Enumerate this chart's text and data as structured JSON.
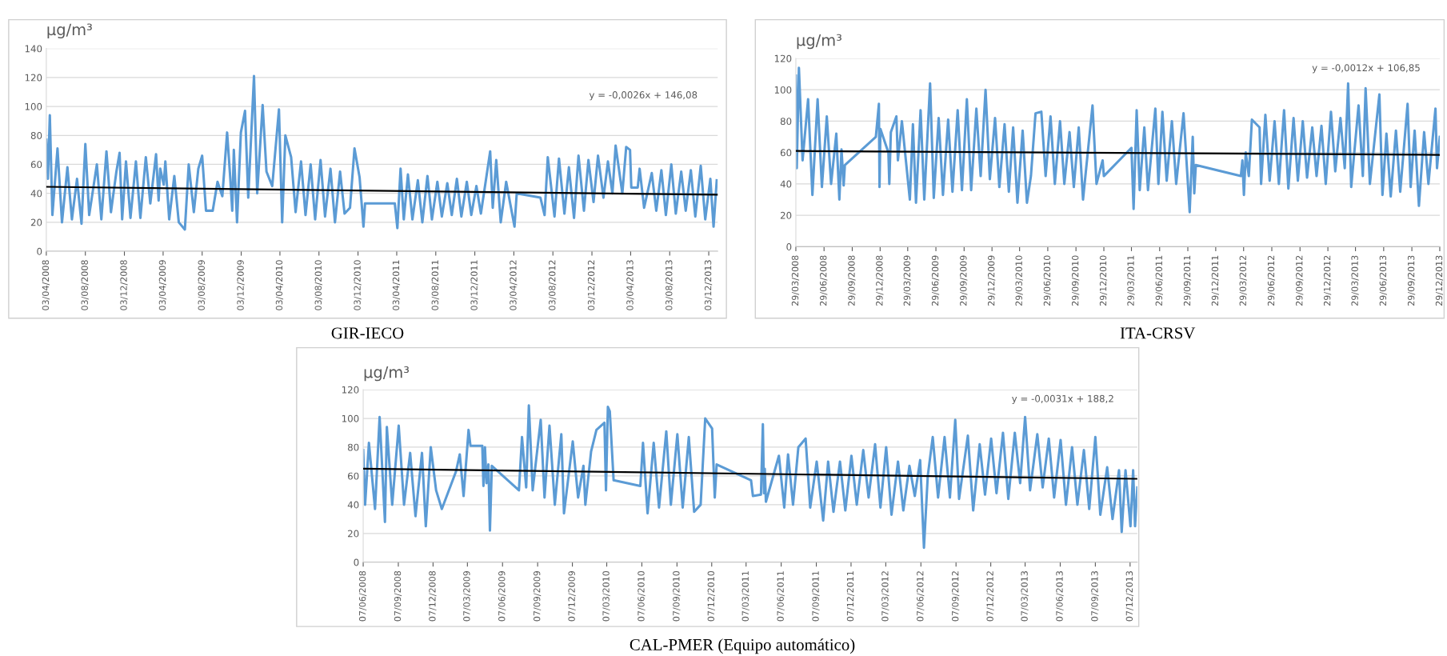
{
  "chart_data": [
    {
      "type": "line",
      "title": "GIR-IECO",
      "ylabel": "μg/m³",
      "annotations": [
        "y = -0,0026x + 146,08"
      ],
      "grid": "y",
      "xlim": [
        "2008-04-03",
        "2013-12-31"
      ],
      "ylim": [
        0,
        140
      ],
      "yticks": [
        0,
        20,
        40,
        60,
        80,
        100,
        120,
        140
      ],
      "xticks": [
        {
          "value": "2008-04-03",
          "label": "03/04/2008"
        },
        {
          "value": "2008-08-03",
          "label": "03/08/2008"
        },
        {
          "value": "2008-12-03",
          "label": "03/12/2008"
        },
        {
          "value": "2009-04-03",
          "label": "03/04/2009"
        },
        {
          "value": "2009-08-03",
          "label": "03/08/2009"
        },
        {
          "value": "2009-12-03",
          "label": "03/12/2009"
        },
        {
          "value": "2010-04-03",
          "label": "03/04/2010"
        },
        {
          "value": "2010-08-03",
          "label": "03/08/2010"
        },
        {
          "value": "2010-12-03",
          "label": "03/12/2010"
        },
        {
          "value": "2011-04-03",
          "label": "03/04/2011"
        },
        {
          "value": "2011-08-03",
          "label": "03/08/2011"
        },
        {
          "value": "2011-12-03",
          "label": "03/12/2011"
        },
        {
          "value": "2012-04-03",
          "label": "03/04/2012"
        },
        {
          "value": "2012-08-03",
          "label": "03/08/2012"
        },
        {
          "value": "2012-12-03",
          "label": "03/12/2012"
        },
        {
          "value": "2013-04-03",
          "label": "03/04/2013"
        },
        {
          "value": "2013-08-03",
          "label": "03/08/2013"
        },
        {
          "value": "2013-12-03",
          "label": "03/12/2013"
        }
      ],
      "series": [
        {
          "color": "#5b9bd5",
          "x": [
            "2008-04-03",
            "2008-04-08",
            "2008-04-14",
            "2008-04-22",
            "2008-05-08",
            "2008-05-22",
            "2008-06-08",
            "2008-06-22",
            "2008-07-08",
            "2008-07-22",
            "2008-08-03",
            "2008-08-15",
            "2008-09-08",
            "2008-09-22",
            "2008-10-08",
            "2008-10-22",
            "2008-11-08",
            "2008-11-18",
            "2008-11-26",
            "2008-12-08",
            "2008-12-22",
            "2009-01-08",
            "2009-01-22",
            "2009-02-08",
            "2009-02-22",
            "2009-03-12",
            "2009-03-20",
            "2009-03-25",
            "2009-04-05",
            "2009-04-10",
            "2009-04-22",
            "2009-05-08",
            "2009-05-22",
            "2009-06-10",
            "2009-06-22",
            "2009-07-08",
            "2009-07-22",
            "2009-08-03",
            "2009-08-15",
            "2009-09-05",
            "2009-09-20",
            "2009-10-05",
            "2009-10-20",
            "2009-10-30",
            "2009-11-05",
            "2009-11-10",
            "2009-11-20",
            "2009-12-02",
            "2009-12-15",
            "2009-12-25",
            "2010-01-12",
            "2010-01-22",
            "2010-02-08",
            "2010-02-20",
            "2010-03-10",
            "2010-03-31",
            "2010-04-10",
            "2010-04-20",
            "2010-05-08",
            "2010-05-22",
            "2010-06-08",
            "2010-06-22",
            "2010-07-08",
            "2010-07-22",
            "2010-08-08",
            "2010-08-22",
            "2010-09-08",
            "2010-09-22",
            "2010-10-08",
            "2010-10-22",
            "2010-11-08",
            "2010-11-22",
            "2010-12-08",
            "2010-12-20",
            "2010-12-25",
            "2011-03-28",
            "2011-04-05",
            "2011-04-15",
            "2011-04-25",
            "2011-05-08",
            "2011-05-22",
            "2011-06-08",
            "2011-06-22",
            "2011-07-08",
            "2011-07-22",
            "2011-08-08",
            "2011-08-22",
            "2011-09-08",
            "2011-09-22",
            "2011-10-08",
            "2011-10-22",
            "2011-11-08",
            "2011-11-22",
            "2011-12-08",
            "2011-12-22",
            "2012-01-20",
            "2012-01-28",
            "2012-02-08",
            "2012-02-22",
            "2012-03-10",
            "2012-04-05",
            "2012-04-12",
            "2012-06-25",
            "2012-07-08",
            "2012-07-18",
            "2012-08-08",
            "2012-08-22",
            "2012-09-08",
            "2012-09-22",
            "2012-10-08",
            "2012-10-22",
            "2012-11-08",
            "2012-11-22",
            "2012-12-08",
            "2012-12-22",
            "2013-01-08",
            "2013-01-22",
            "2013-02-05",
            "2013-02-15",
            "2013-03-08",
            "2013-03-20",
            "2013-04-01",
            "2013-04-05",
            "2013-04-25",
            "2013-05-01",
            "2013-05-15",
            "2013-06-08",
            "2013-06-22",
            "2013-07-08",
            "2013-07-22",
            "2013-08-08",
            "2013-08-22",
            "2013-09-08",
            "2013-09-22",
            "2013-10-08",
            "2013-10-22",
            "2013-11-08",
            "2013-11-22",
            "2013-12-08",
            "2013-12-18",
            "2013-12-28"
          ],
          "values": [
            77,
            50,
            94,
            25,
            71,
            20,
            58,
            22,
            50,
            19,
            74,
            25,
            60,
            22,
            69,
            27,
            55,
            68,
            22,
            62,
            23,
            62,
            23,
            65,
            33,
            67,
            35,
            57,
            46,
            62,
            22,
            52,
            20,
            15,
            60,
            27,
            57,
            66,
            28,
            28,
            48,
            38,
            82,
            50,
            28,
            70,
            20,
            82,
            97,
            37,
            121,
            40,
            101,
            55,
            45,
            98,
            20,
            80,
            65,
            27,
            62,
            25,
            60,
            22,
            63,
            24,
            57,
            20,
            55,
            26,
            30,
            71,
            51,
            17,
            33,
            33,
            16,
            57,
            22,
            53,
            22,
            49,
            20,
            52,
            22,
            48,
            24,
            47,
            25,
            50,
            24,
            48,
            25,
            45,
            26,
            69,
            30,
            63,
            20,
            48,
            17,
            40,
            37,
            25,
            65,
            24,
            64,
            26,
            58,
            23,
            66,
            28,
            63,
            34,
            66,
            37,
            62,
            40,
            73,
            40,
            72,
            70,
            44,
            44,
            57,
            30,
            54,
            28,
            56,
            25,
            60,
            26,
            55,
            28,
            56,
            24,
            59,
            22,
            50,
            17,
            49
          ]
        },
        {
          "color": "#000000",
          "x": [
            "2008-04-03",
            "2013-12-31"
          ],
          "values": [
            44.5,
            39
          ]
        }
      ]
    },
    {
      "type": "line",
      "title": "ITA-CRSV",
      "ylabel": "μg/m³",
      "annotations": [
        "y = -0,0012x + 106,85"
      ],
      "grid": "y",
      "xlim": [
        "2008-03-29",
        "2013-12-29"
      ],
      "ylim": [
        0,
        120
      ],
      "yticks": [
        0,
        20,
        40,
        60,
        80,
        100,
        120
      ],
      "xticks": [
        {
          "value": "2008-03-29",
          "label": "29/03/2008"
        },
        {
          "value": "2008-06-29",
          "label": "29/06/2008"
        },
        {
          "value": "2008-09-29",
          "label": "29/09/2008"
        },
        {
          "value": "2008-12-29",
          "label": "29/12/2008"
        },
        {
          "value": "2009-03-29",
          "label": "29/03/2009"
        },
        {
          "value": "2009-06-29",
          "label": "29/06/2009"
        },
        {
          "value": "2009-09-29",
          "label": "29/09/2009"
        },
        {
          "value": "2009-12-29",
          "label": "29/12/2009"
        },
        {
          "value": "2010-03-29",
          "label": "29/03/2010"
        },
        {
          "value": "2010-06-29",
          "label": "29/06/2010"
        },
        {
          "value": "2010-09-29",
          "label": "29/09/2010"
        },
        {
          "value": "2010-12-29",
          "label": "29/12/2010"
        },
        {
          "value": "2011-03-29",
          "label": "29/03/2011"
        },
        {
          "value": "2011-06-29",
          "label": "29/06/2011"
        },
        {
          "value": "2011-09-29",
          "label": "29/09/2011"
        },
        {
          "value": "2011-12-29",
          "label": "29/12/2011"
        },
        {
          "value": "2012-03-29",
          "label": "29/03/2012"
        },
        {
          "value": "2012-06-29",
          "label": "29/06/2012"
        },
        {
          "value": "2012-09-29",
          "label": "29/09/2012"
        },
        {
          "value": "2012-12-29",
          "label": "29/12/2012"
        },
        {
          "value": "2013-03-29",
          "label": "29/03/2013"
        },
        {
          "value": "2013-06-29",
          "label": "29/06/2013"
        },
        {
          "value": "2013-09-29",
          "label": "29/09/2013"
        },
        {
          "value": "2013-12-29",
          "label": "29/12/2013"
        }
      ],
      "series": [
        {
          "color": "#5b9bd5",
          "x": [
            "2008-03-29",
            "2008-04-01",
            "2008-04-08",
            "2008-04-20",
            "2008-05-08",
            "2008-05-22",
            "2008-06-08",
            "2008-06-22",
            "2008-07-08",
            "2008-07-22",
            "2008-08-08",
            "2008-08-18",
            "2008-08-25",
            "2008-09-01",
            "2008-09-05",
            "2008-12-15",
            "2008-12-25",
            "2008-12-27",
            "2008-12-30",
            "2009-01-25",
            "2009-01-28",
            "2009-02-02",
            "2009-02-20",
            "2009-02-25",
            "2009-03-10",
            "2009-04-05",
            "2009-04-15",
            "2009-04-25",
            "2009-05-10",
            "2009-05-22",
            "2009-06-10",
            "2009-06-22",
            "2009-07-08",
            "2009-07-22",
            "2009-08-08",
            "2009-08-22",
            "2009-09-08",
            "2009-09-22",
            "2009-10-08",
            "2009-10-22",
            "2009-11-08",
            "2009-11-22",
            "2009-12-08",
            "2009-12-22",
            "2010-01-08",
            "2010-01-22",
            "2010-02-08",
            "2010-02-22",
            "2010-03-08",
            "2010-03-22",
            "2010-04-08",
            "2010-04-22",
            "2010-05-05",
            "2010-05-20",
            "2010-06-08",
            "2010-06-22",
            "2010-07-08",
            "2010-07-22",
            "2010-08-08",
            "2010-08-22",
            "2010-09-08",
            "2010-09-22",
            "2010-10-08",
            "2010-10-22",
            "2010-11-22",
            "2010-12-05",
            "2010-12-25",
            "2010-12-29",
            "2011-03-29",
            "2011-04-05",
            "2011-04-15",
            "2011-04-25",
            "2011-05-10",
            "2011-05-22",
            "2011-06-15",
            "2011-06-25",
            "2011-07-08",
            "2011-07-22",
            "2011-08-08",
            "2011-08-22",
            "2011-09-15",
            "2011-10-05",
            "2011-10-15",
            "2011-10-20",
            "2011-10-25",
            "2012-03-20",
            "2012-03-25",
            "2012-03-30",
            "2012-04-05",
            "2012-04-15",
            "2012-04-25",
            "2012-05-20",
            "2012-05-25",
            "2012-06-08",
            "2012-06-22",
            "2012-07-08",
            "2012-07-22",
            "2012-08-08",
            "2012-08-22",
            "2012-09-08",
            "2012-09-22",
            "2012-10-08",
            "2012-10-22",
            "2012-11-08",
            "2012-11-22",
            "2012-12-08",
            "2012-12-22",
            "2013-01-08",
            "2013-01-22",
            "2013-02-08",
            "2013-02-22",
            "2013-03-05",
            "2013-03-15",
            "2013-04-08",
            "2013-04-22",
            "2013-05-01",
            "2013-05-15",
            "2013-06-15",
            "2013-06-25",
            "2013-07-08",
            "2013-07-22",
            "2013-08-08",
            "2013-08-22",
            "2013-09-15",
            "2013-09-25",
            "2013-10-08",
            "2013-10-22",
            "2013-11-08",
            "2013-11-22",
            "2013-12-15",
            "2013-12-20",
            "2013-12-29"
          ],
          "values": [
            109,
            50,
            114,
            55,
            94,
            33,
            94,
            38,
            83,
            40,
            72,
            30,
            62,
            39,
            52,
            70,
            91,
            38,
            75,
            60,
            40,
            73,
            83,
            55,
            80,
            30,
            78,
            28,
            87,
            30,
            104,
            31,
            82,
            33,
            81,
            35,
            87,
            36,
            94,
            36,
            88,
            45,
            100,
            43,
            82,
            38,
            78,
            35,
            76,
            28,
            74,
            28,
            45,
            85,
            86,
            45,
            83,
            40,
            80,
            40,
            73,
            38,
            76,
            30,
            90,
            40,
            55,
            45,
            63,
            24,
            87,
            36,
            76,
            36,
            88,
            40,
            86,
            42,
            80,
            40,
            85,
            22,
            70,
            34,
            52,
            45,
            55,
            33,
            60,
            45,
            81,
            76,
            40,
            84,
            42,
            80,
            40,
            87,
            37,
            82,
            42,
            80,
            44,
            76,
            45,
            77,
            40,
            86,
            48,
            82,
            50,
            104,
            38,
            90,
            45,
            101,
            40,
            97,
            33,
            72,
            32,
            74,
            35,
            91,
            38,
            74,
            26,
            73,
            40,
            88,
            50,
            70
          ]
        },
        {
          "color": "#000000",
          "x": [
            "2008-03-29",
            "2013-12-29"
          ],
          "values": [
            61,
            58.5
          ]
        }
      ]
    },
    {
      "type": "line",
      "title": "CAL-PMER (Equipo automático)",
      "ylabel": "μg/m³",
      "annotations": [
        "y = -0,0031x + 188,2"
      ],
      "grid": "y",
      "xlim": [
        "2008-06-07",
        "2013-12-26"
      ],
      "ylim": [
        0,
        120
      ],
      "yticks": [
        0,
        20,
        40,
        60,
        80,
        100,
        120
      ],
      "xticks": [
        {
          "value": "2008-06-07",
          "label": "07/06/2008"
        },
        {
          "value": "2008-09-07",
          "label": "07/09/2008"
        },
        {
          "value": "2008-12-07",
          "label": "07/12/2008"
        },
        {
          "value": "2009-03-07",
          "label": "07/03/2009"
        },
        {
          "value": "2009-06-07",
          "label": "07/06/2009"
        },
        {
          "value": "2009-09-07",
          "label": "07/09/2009"
        },
        {
          "value": "2009-12-07",
          "label": "07/12/2009"
        },
        {
          "value": "2010-03-07",
          "label": "07/03/2010"
        },
        {
          "value": "2010-06-07",
          "label": "07/06/2010"
        },
        {
          "value": "2010-09-07",
          "label": "07/09/2010"
        },
        {
          "value": "2010-12-07",
          "label": "07/12/2010"
        },
        {
          "value": "2011-03-07",
          "label": "07/03/2011"
        },
        {
          "value": "2011-06-07",
          "label": "07/06/2011"
        },
        {
          "value": "2011-09-07",
          "label": "07/09/2011"
        },
        {
          "value": "2011-12-07",
          "label": "07/12/2011"
        },
        {
          "value": "2012-03-07",
          "label": "07/03/2012"
        },
        {
          "value": "2012-06-07",
          "label": "07/06/2012"
        },
        {
          "value": "2012-09-07",
          "label": "07/09/2012"
        },
        {
          "value": "2012-12-07",
          "label": "07/12/2012"
        },
        {
          "value": "2013-03-07",
          "label": "07/03/2013"
        },
        {
          "value": "2013-06-07",
          "label": "07/06/2013"
        },
        {
          "value": "2013-09-07",
          "label": "07/09/2013"
        },
        {
          "value": "2013-12-07",
          "label": "07/12/2013"
        }
      ],
      "series": [
        {
          "color": "#5b9bd5",
          "x": [
            "2008-06-07",
            "2008-06-12",
            "2008-06-22",
            "2008-07-08",
            "2008-07-20",
            "2008-08-03",
            "2008-08-08",
            "2008-08-22",
            "2008-09-08",
            "2008-09-22",
            "2008-10-08",
            "2008-10-22",
            "2008-11-08",
            "2008-11-18",
            "2008-12-01",
            "2008-12-15",
            "2008-12-30",
            "2009-02-05",
            "2009-02-15",
            "2009-02-25",
            "2009-03-10",
            "2009-03-15",
            "2009-04-15",
            "2009-04-18",
            "2009-04-22",
            "2009-04-26",
            "2009-05-01",
            "2009-05-05",
            "2009-05-10",
            "2009-07-20",
            "2009-07-28",
            "2009-08-08",
            "2009-08-15",
            "2009-08-25",
            "2009-09-15",
            "2009-09-25",
            "2009-10-08",
            "2009-10-22",
            "2009-11-08",
            "2009-11-15",
            "2009-12-08",
            "2009-12-22",
            "2010-01-05",
            "2010-01-10",
            "2010-01-25",
            "2010-02-08",
            "2010-03-01",
            "2010-03-05",
            "2010-03-10",
            "2010-03-15",
            "2010-03-25",
            "2010-06-03",
            "2010-06-10",
            "2010-06-22",
            "2010-07-08",
            "2010-07-22",
            "2010-08-10",
            "2010-08-22",
            "2010-09-08",
            "2010-09-22",
            "2010-10-08",
            "2010-10-22",
            "2010-11-08",
            "2010-11-20",
            "2010-12-08",
            "2010-12-15",
            "2010-12-20",
            "2011-03-20",
            "2011-03-25",
            "2011-04-15",
            "2011-04-20",
            "2011-04-23",
            "2011-04-25",
            "2011-04-28",
            "2011-06-01",
            "2011-06-15",
            "2011-06-25",
            "2011-07-08",
            "2011-07-22",
            "2011-08-10",
            "2011-08-22",
            "2011-09-08",
            "2011-09-25",
            "2011-10-08",
            "2011-10-22",
            "2011-11-08",
            "2011-11-22",
            "2011-12-08",
            "2011-12-22",
            "2012-01-08",
            "2012-01-22",
            "2012-02-08",
            "2012-02-22",
            "2012-03-08",
            "2012-03-22",
            "2012-04-08",
            "2012-04-22",
            "2012-05-08",
            "2012-05-22",
            "2012-06-05",
            "2012-06-15",
            "2012-06-25",
            "2012-07-08",
            "2012-07-22",
            "2012-08-08",
            "2012-08-22",
            "2012-09-05",
            "2012-09-15",
            "2012-10-08",
            "2012-10-22",
            "2012-11-08",
            "2012-11-22",
            "2012-12-08",
            "2012-12-22",
            "2013-01-08",
            "2013-01-22",
            "2013-02-08",
            "2013-02-22",
            "2013-03-07",
            "2013-03-20",
            "2013-04-08",
            "2013-04-22",
            "2013-05-08",
            "2013-05-22",
            "2013-06-08",
            "2013-06-22",
            "2013-07-08",
            "2013-07-22",
            "2013-08-08",
            "2013-08-22",
            "2013-09-07",
            "2013-09-20",
            "2013-10-08",
            "2013-10-22",
            "2013-11-08",
            "2013-11-15",
            "2013-11-25",
            "2013-12-08",
            "2013-12-15",
            "2013-12-20",
            "2013-12-26"
          ],
          "values": [
            78,
            40,
            83,
            37,
            101,
            28,
            94,
            40,
            95,
            40,
            76,
            32,
            76,
            25,
            80,
            50,
            37,
            63,
            75,
            46,
            92,
            81,
            81,
            53,
            80,
            55,
            68,
            22,
            67,
            50,
            87,
            52,
            109,
            50,
            99,
            45,
            95,
            40,
            89,
            34,
            84,
            45,
            67,
            40,
            77,
            92,
            97,
            50,
            108,
            105,
            57,
            53,
            83,
            34,
            83,
            38,
            91,
            40,
            89,
            38,
            87,
            35,
            40,
            100,
            93,
            45,
            68,
            57,
            46,
            47,
            96,
            48,
            65,
            42,
            74,
            38,
            75,
            40,
            80,
            86,
            38,
            70,
            29,
            70,
            35,
            70,
            36,
            74,
            40,
            78,
            45,
            82,
            38,
            80,
            33,
            70,
            36,
            67,
            46,
            71,
            10,
            60,
            87,
            45,
            87,
            45,
            99,
            44,
            88,
            36,
            82,
            47,
            86,
            48,
            90,
            44,
            90,
            55,
            101,
            50,
            89,
            52,
            86,
            45,
            85,
            40,
            80,
            40,
            78,
            37,
            87,
            33,
            66,
            30,
            64,
            21,
            64,
            25,
            64,
            25,
            52
          ]
        },
        {
          "color": "#000000",
          "x": [
            "2008-06-07",
            "2013-12-26"
          ],
          "values": [
            65,
            58
          ]
        }
      ]
    }
  ]
}
